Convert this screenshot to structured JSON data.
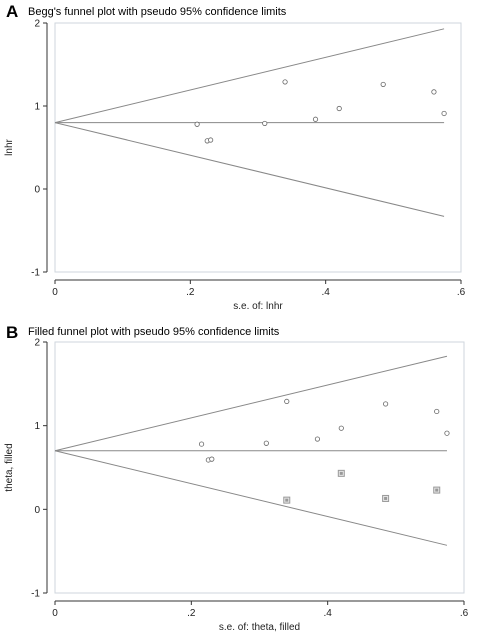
{
  "chart_data": [
    {
      "type": "scatter",
      "panel_label": "A",
      "title": "Begg's funnel plot with pseudo 95% confidence limits",
      "xlabel": "s.e. of: lnhr",
      "ylabel": "lnhr",
      "xlim": [
        0,
        0.6
      ],
      "ylim": [
        -1,
        2
      ],
      "xticks": [
        0,
        0.2,
        0.4,
        0.6
      ],
      "xtick_labels": [
        "0",
        ".2",
        ".4",
        ".6"
      ],
      "yticks": [
        -1,
        0,
        1,
        2
      ],
      "ytick_labels": [
        "-1",
        "0",
        "1",
        "2"
      ],
      "grid": false,
      "pooled_estimate": 0.8,
      "funnel_max_se": 0.575,
      "funnel_upper_end": 1.93,
      "funnel_lower_end": -0.33,
      "series": [
        {
          "marker": "open-circle",
          "points": [
            [
              0.21,
              0.78
            ],
            [
              0.225,
              0.58
            ],
            [
              0.23,
              0.59
            ],
            [
              0.31,
              0.79
            ],
            [
              0.34,
              1.29
            ],
            [
              0.385,
              0.84
            ],
            [
              0.42,
              0.97
            ],
            [
              0.485,
              1.26
            ],
            [
              0.56,
              1.17
            ],
            [
              0.575,
              0.91
            ]
          ]
        }
      ]
    },
    {
      "type": "scatter",
      "panel_label": "B",
      "title": "Filled funnel plot with pseudo 95% confidence limits",
      "xlabel": "s.e. of: theta, filled",
      "ylabel": "theta, filled",
      "xlim": [
        0,
        0.6
      ],
      "ylim": [
        -1,
        2
      ],
      "xticks": [
        0,
        0.2,
        0.4,
        0.6
      ],
      "xtick_labels": [
        "0",
        ".2",
        ".4",
        ".6"
      ],
      "yticks": [
        -1,
        0,
        1,
        2
      ],
      "ytick_labels": [
        "-1",
        "0",
        "1",
        "2"
      ],
      "grid": false,
      "pooled_estimate": 0.7,
      "funnel_max_se": 0.575,
      "funnel_upper_end": 1.83,
      "funnel_lower_end": -0.43,
      "series": [
        {
          "marker": "open-circle",
          "points": [
            [
              0.215,
              0.78
            ],
            [
              0.225,
              0.59
            ],
            [
              0.23,
              0.6
            ],
            [
              0.31,
              0.79
            ],
            [
              0.34,
              1.29
            ],
            [
              0.385,
              0.84
            ],
            [
              0.42,
              0.97
            ],
            [
              0.485,
              1.26
            ],
            [
              0.56,
              1.17
            ],
            [
              0.575,
              0.91
            ]
          ]
        },
        {
          "marker": "boxed-square",
          "points": [
            [
              0.34,
              0.11
            ],
            [
              0.42,
              0.43
            ],
            [
              0.485,
              0.13
            ],
            [
              0.56,
              0.23
            ]
          ]
        }
      ]
    }
  ],
  "colors": {
    "axis": "#333333",
    "lines": "#888888",
    "markers": "#666666",
    "filled_marker": "#999999"
  }
}
